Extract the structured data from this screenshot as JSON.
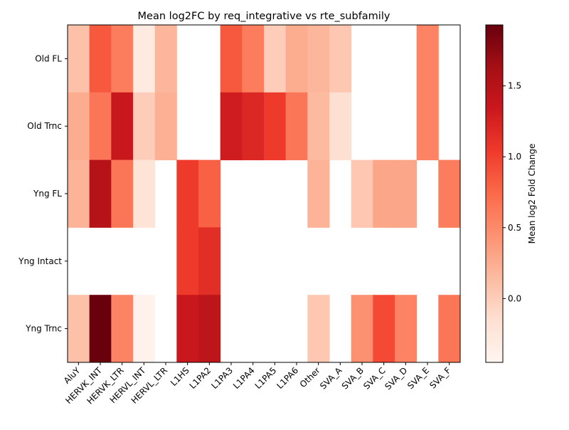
{
  "chart_data": {
    "type": "heatmap",
    "title": "Mean log2FC by req_integrative vs rte_subfamily",
    "xlabel": "",
    "ylabel": "",
    "x_categories": [
      "AluY",
      "HERVK_INT",
      "HERVK_LTR",
      "HERVL_INT",
      "HERVL_LTR",
      "L1HS",
      "L1PA2",
      "L1PA3",
      "L1PA4",
      "L1PA5",
      "L1PA6",
      "Other",
      "SVA_A",
      "SVA_B",
      "SVA_C",
      "SVA_D",
      "SVA_E",
      "SVA_F"
    ],
    "y_categories": [
      "Old FL",
      "Old Trnc",
      "Yng FL",
      "Yng Intact",
      "Yng Trnc"
    ],
    "values": [
      [
        0.1,
        0.85,
        0.6,
        -0.3,
        0.18,
        null,
        null,
        0.85,
        0.6,
        0.0,
        0.25,
        0.18,
        0.05,
        null,
        null,
        null,
        0.55,
        null
      ],
      [
        0.25,
        0.65,
        1.35,
        0.0,
        0.22,
        null,
        null,
        1.3,
        1.2,
        1.05,
        0.65,
        0.15,
        -0.15,
        null,
        null,
        null,
        0.55,
        null
      ],
      [
        0.2,
        1.5,
        0.65,
        -0.2,
        null,
        1.05,
        0.8,
        null,
        null,
        null,
        null,
        0.2,
        null,
        0.05,
        0.3,
        0.3,
        null,
        0.6
      ],
      [
        null,
        null,
        null,
        null,
        null,
        1.05,
        1.15,
        null,
        null,
        null,
        null,
        null,
        null,
        null,
        null,
        null,
        null,
        null
      ],
      [
        0.1,
        1.92,
        0.55,
        -0.4,
        null,
        1.35,
        1.45,
        null,
        null,
        null,
        null,
        0.05,
        null,
        0.45,
        0.95,
        0.55,
        null,
        0.65
      ]
    ],
    "colorbar": {
      "label": "Mean log2 Fold Change",
      "min": -0.45,
      "max": 1.93,
      "ticks": [
        0.0,
        0.5,
        1.0,
        1.5
      ],
      "tick_labels": [
        "0.0",
        "0.5",
        "1.0",
        "1.5"
      ],
      "colormap": "Reds"
    },
    "grid": false
  }
}
